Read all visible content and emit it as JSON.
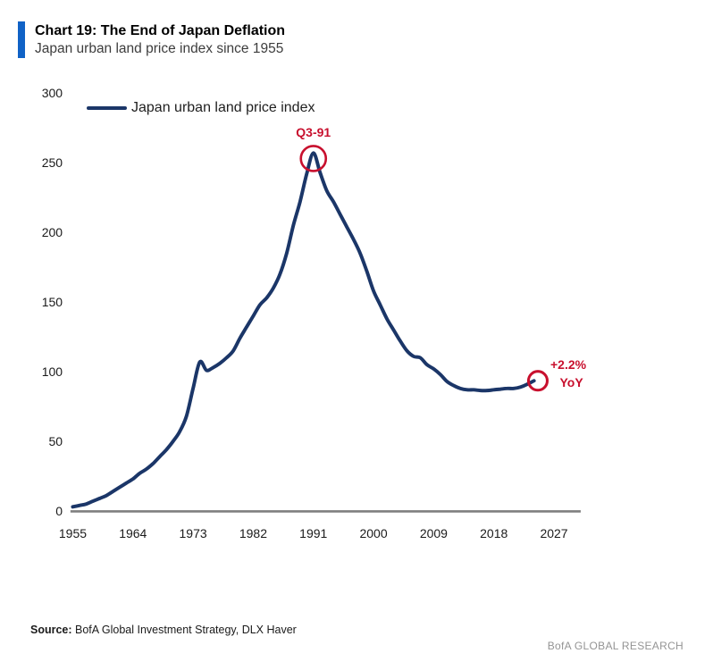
{
  "header": {
    "title": "Chart 19: The End of Japan Deflation",
    "subtitle": "Japan urban land price index since 1955"
  },
  "legend": {
    "label": "Japan urban land price index"
  },
  "chart_data": {
    "type": "line",
    "title": "Chart 19: The End of Japan Deflation",
    "subtitle": "Japan urban land price index since 1955",
    "xlabel": "",
    "ylabel": "",
    "xlim": [
      1955,
      2027
    ],
    "ylim": [
      0,
      300
    ],
    "grid": false,
    "legend_position": "top-left",
    "yticks": [
      0,
      50,
      100,
      150,
      200,
      250,
      300
    ],
    "xticks": [
      1955,
      1964,
      1973,
      1982,
      1991,
      2000,
      2009,
      2018,
      2027
    ],
    "series": [
      {
        "name": "Japan urban land price index",
        "color": "#1b3668",
        "x": [
          1955,
          1956,
          1957,
          1958,
          1959,
          1960,
          1961,
          1962,
          1963,
          1964,
          1965,
          1966,
          1967,
          1968,
          1969,
          1970,
          1971,
          1972,
          1973,
          1974,
          1975,
          1976,
          1977,
          1978,
          1979,
          1980,
          1981,
          1982,
          1983,
          1984,
          1985,
          1986,
          1987,
          1988,
          1989,
          1990,
          1991,
          1992,
          1993,
          1994,
          1995,
          1996,
          1997,
          1998,
          1999,
          2000,
          2001,
          2002,
          2003,
          2004,
          2005,
          2006,
          2007,
          2008,
          2009,
          2010,
          2011,
          2012,
          2013,
          2014,
          2015,
          2016,
          2017,
          2018,
          2019,
          2020,
          2021,
          2022,
          2023,
          2024
        ],
        "values": [
          3,
          4,
          5,
          7,
          9,
          11,
          14,
          17,
          20,
          23,
          27,
          30,
          34,
          39,
          44,
          50,
          57,
          68,
          88,
          107,
          101,
          103,
          106,
          110,
          115,
          124,
          132,
          140,
          148,
          153,
          160,
          170,
          185,
          205,
          222,
          242,
          257,
          243,
          230,
          222,
          213,
          204,
          195,
          185,
          172,
          158,
          148,
          138,
          130,
          122,
          115,
          111,
          110,
          105,
          102,
          98,
          93,
          90,
          88,
          87,
          87,
          86.5,
          86.5,
          87,
          87.5,
          88,
          88,
          89,
          91,
          93.5
        ]
      }
    ],
    "annotations": [
      {
        "id": "peak",
        "label": "Q3-91",
        "x": 1991,
        "value": 257,
        "style": "circled-point",
        "label_position": "above",
        "color": "#c8102e"
      },
      {
        "id": "latest",
        "label": "+2.2% YoY",
        "label_lines": [
          "+2.2%",
          "YoY"
        ],
        "x": 2024,
        "value": 93.5,
        "style": "circled-point",
        "label_position": "right",
        "color": "#c8102e"
      }
    ]
  },
  "footer": {
    "source_label": "Source:",
    "source_text": " BofA Global Investment Strategy, DLX Haver",
    "branding": "BofA GLOBAL RESEARCH"
  },
  "colors": {
    "accent_bar": "#1062c6",
    "line": "#1b3668",
    "annotation": "#c8102e",
    "axis": "#7f7f7f",
    "tick_text": "#1a1a1a"
  }
}
